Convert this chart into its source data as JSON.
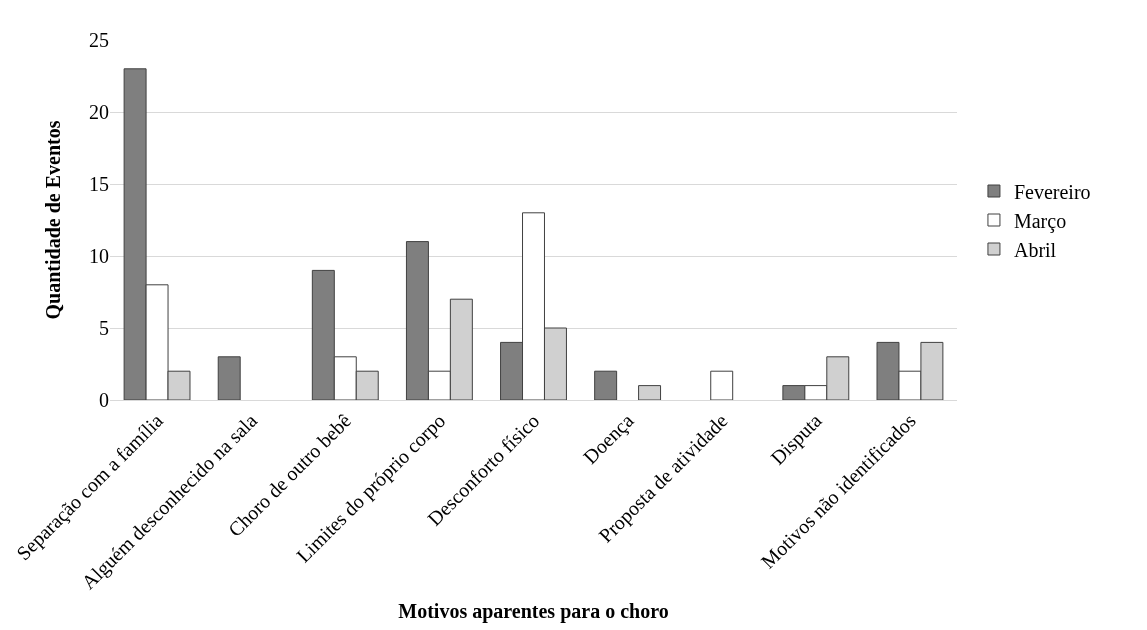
{
  "chart_data": {
    "type": "bar",
    "xlabel": "Motivos aparentes para o choro",
    "ylabel": "Quantidade de Eventos",
    "categories": [
      "Separação com a família",
      "Alguém desconhecido na sala",
      "Choro de outro bebê",
      "Limites do próprio corpo",
      "Desconforto físico",
      "Doença",
      "Proposta de atividade",
      "Disputa",
      "Motivos não identificados"
    ],
    "series": [
      {
        "name": "Fevereiro",
        "color": "#7f7f7f",
        "values": [
          23,
          3,
          9,
          11,
          4,
          2,
          null,
          1,
          4
        ]
      },
      {
        "name": "Março",
        "color": "#ffffff",
        "values": [
          8,
          null,
          3,
          2,
          13,
          null,
          2,
          1,
          2
        ]
      },
      {
        "name": "Abril",
        "color": "#d0d0d0",
        "values": [
          2,
          null,
          2,
          7,
          5,
          1,
          null,
          3,
          4
        ]
      }
    ],
    "ylim": [
      0,
      25
    ],
    "yticks": [
      0,
      5,
      10,
      15,
      20,
      25
    ],
    "grid": "y",
    "legend": "right"
  }
}
